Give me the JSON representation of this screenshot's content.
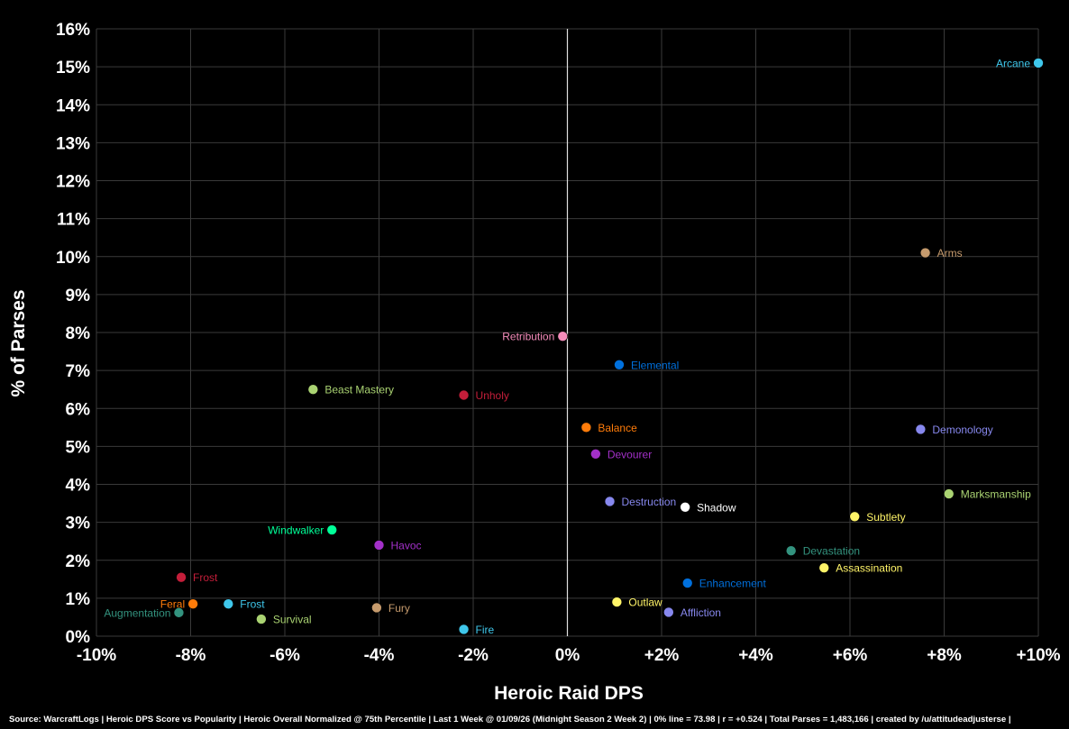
{
  "footer": "Source: WarcraftLogs | Heroic DPS Score vs Popularity | Heroic Overall Normalized @ 75th Percentile | Last 1 Week @ 01/09/26 (Midnight Season 2 Week 2) | 0% line = 73.98 | r = +0.524 | Total Parses = 1,483,166 | created by /u/attitudeadjusterse |",
  "chart_data": {
    "type": "scatter",
    "xlabel": "Heroic Raid DPS",
    "ylabel": "% of Parses",
    "xlim": [
      -10,
      10
    ],
    "ylim": [
      0,
      16
    ],
    "grid": true,
    "x_ticks": [
      "-10%",
      "-8%",
      "-6%",
      "-4%",
      "-2%",
      "0%",
      "+2%",
      "+4%",
      "+6%",
      "+8%",
      "+10%"
    ],
    "y_ticks": [
      "0%",
      "1%",
      "2%",
      "3%",
      "4%",
      "5%",
      "6%",
      "7%",
      "8%",
      "9%",
      "10%",
      "11%",
      "12%",
      "13%",
      "14%",
      "15%",
      "16%"
    ],
    "points": [
      {
        "label": "Arcane",
        "x": 10.0,
        "y": 15.1,
        "color": "#3FC7EB",
        "label_side": "left"
      },
      {
        "label": "Arms",
        "x": 7.6,
        "y": 10.1,
        "color": "#C69B6D",
        "label_side": "right"
      },
      {
        "label": "Retribution",
        "x": -0.1,
        "y": 7.9,
        "color": "#F48CBA",
        "label_side": "left"
      },
      {
        "label": "Elemental",
        "x": 1.1,
        "y": 7.15,
        "color": "#0070DD",
        "label_side": "right"
      },
      {
        "label": "Beast Mastery",
        "x": -5.4,
        "y": 6.5,
        "color": "#AAD372",
        "label_side": "right"
      },
      {
        "label": "Unholy",
        "x": -2.2,
        "y": 6.35,
        "color": "#C41E3A",
        "label_side": "right"
      },
      {
        "label": "Balance",
        "x": 0.4,
        "y": 5.5,
        "color": "#FF7C0A",
        "label_side": "right"
      },
      {
        "label": "Demonology",
        "x": 7.5,
        "y": 5.45,
        "color": "#8788EE",
        "label_side": "right"
      },
      {
        "label": "Devourer",
        "x": 0.6,
        "y": 4.8,
        "color": "#A330C9",
        "label_side": "right"
      },
      {
        "label": "Marksmanship",
        "x": 8.1,
        "y": 3.75,
        "color": "#AAD372",
        "label_side": "right"
      },
      {
        "label": "Destruction",
        "x": 0.9,
        "y": 3.55,
        "color": "#8788EE",
        "label_side": "right"
      },
      {
        "label": "Shadow",
        "x": 2.5,
        "y": 3.4,
        "color": "#FFFFFF",
        "label_side": "right"
      },
      {
        "label": "Subtlety",
        "x": 6.1,
        "y": 3.15,
        "color": "#FFF468",
        "label_side": "right"
      },
      {
        "label": "Windwalker",
        "x": -5.0,
        "y": 2.8,
        "color": "#00FF98",
        "label_side": "left"
      },
      {
        "label": "Havoc",
        "x": -4.0,
        "y": 2.4,
        "color": "#A330C9",
        "label_side": "right"
      },
      {
        "label": "Devastation",
        "x": 4.75,
        "y": 2.25,
        "color": "#33937F",
        "label_side": "right"
      },
      {
        "label": "Assassination",
        "x": 5.45,
        "y": 1.8,
        "color": "#FFF468",
        "label_side": "right"
      },
      {
        "label": "Frost",
        "x": -8.2,
        "y": 1.55,
        "color": "#C41E3A",
        "label_side": "right"
      },
      {
        "label": "Enhancement",
        "x": 2.55,
        "y": 1.4,
        "color": "#0070DD",
        "label_side": "right"
      },
      {
        "label": "Outlaw",
        "x": 1.05,
        "y": 0.9,
        "color": "#FFF468",
        "label_side": "right"
      },
      {
        "label": "Feral",
        "x": -7.95,
        "y": 0.85,
        "color": "#FF7C0A",
        "label_side": "left"
      },
      {
        "label": "Frost",
        "x": -7.2,
        "y": 0.85,
        "color": "#3FC7EB",
        "label_side": "right"
      },
      {
        "label": "Fury",
        "x": -4.05,
        "y": 0.75,
        "color": "#C69B6D",
        "label_side": "right"
      },
      {
        "label": "Affliction",
        "x": 2.15,
        "y": 0.63,
        "color": "#8788EE",
        "label_side": "right"
      },
      {
        "label": "Augmentation",
        "x": -8.25,
        "y": 0.62,
        "color": "#33937F",
        "label_side": "left"
      },
      {
        "label": "Survival",
        "x": -6.5,
        "y": 0.45,
        "color": "#AAD372",
        "label_side": "right"
      },
      {
        "label": "Fire",
        "x": -2.2,
        "y": 0.18,
        "color": "#3FC7EB",
        "label_side": "right"
      }
    ]
  }
}
